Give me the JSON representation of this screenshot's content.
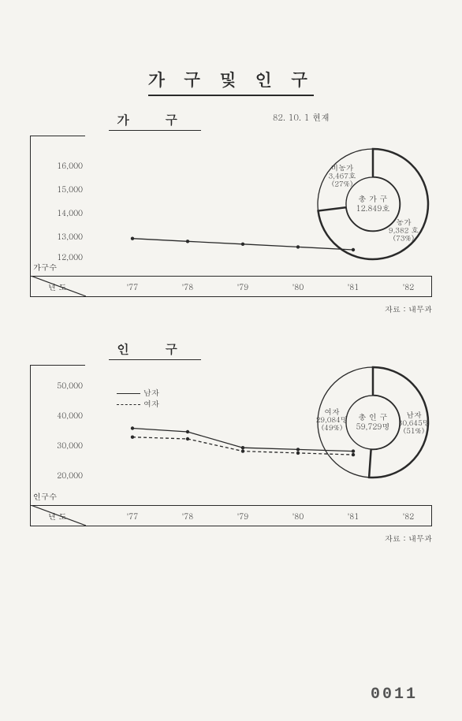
{
  "page": {
    "title": "가 구 및 인 구",
    "stamp": "0011",
    "source": "자료 : 내무과"
  },
  "household": {
    "title": "가   구",
    "asof": "82. 10. 1 현재",
    "y_label": "가구수",
    "x_label": "년   도",
    "y_ticks": [
      "12,000",
      "13,000",
      "14,000",
      "15,000",
      "16,000"
    ],
    "y_values": [
      12000,
      13000,
      14000,
      15000,
      16000
    ],
    "x_ticks": [
      "'77",
      "'78",
      "'79",
      "'80",
      "'81",
      "'82"
    ],
    "series": [
      {
        "name": "households",
        "style": "solid",
        "color": "#2a2a2a",
        "points": [
          13350,
          13250,
          13150,
          13050,
          12950
        ]
      }
    ],
    "ylim": [
      12000,
      17000
    ],
    "donut": {
      "center_title": "총 가 구",
      "center_value": "12.849호",
      "slices": [
        {
          "label": "농가",
          "value": "9,382 호",
          "pct": "(73%)",
          "angle": 263
        },
        {
          "label": "비농가",
          "value": "3,467호",
          "pct": "(27%)",
          "angle": 97
        }
      ]
    }
  },
  "population": {
    "title": "인   구",
    "y_label": "인구수",
    "x_label": "년   도",
    "y_ticks": [
      "20,000",
      "30,000",
      "40,000",
      "50,000"
    ],
    "y_values": [
      20000,
      30000,
      40000,
      50000
    ],
    "x_ticks": [
      "'77",
      "'78",
      "'79",
      "'80",
      "'81",
      "'82"
    ],
    "legend": {
      "male": "남자",
      "female": "여자"
    },
    "series": [
      {
        "name": "male",
        "style": "solid",
        "color": "#2a2a2a",
        "points": [
          37000,
          36000,
          31500,
          31000,
          30500
        ]
      },
      {
        "name": "female",
        "style": "dashed",
        "color": "#2a2a2a",
        "points": [
          34500,
          34000,
          30500,
          30000,
          29500
        ]
      }
    ],
    "ylim": [
      15000,
      55000
    ],
    "donut": {
      "center_title": "총 인 구",
      "center_value": "59,729명",
      "slices": [
        {
          "label": "남자",
          "value": "30,645명",
          "pct": "(51%)",
          "angle": 184
        },
        {
          "label": "여자",
          "value": "29,084명",
          "pct": "(49%)",
          "angle": 176
        }
      ]
    }
  },
  "colors": {
    "ink": "#2a2a2a",
    "bg": "#f5f4f0"
  }
}
